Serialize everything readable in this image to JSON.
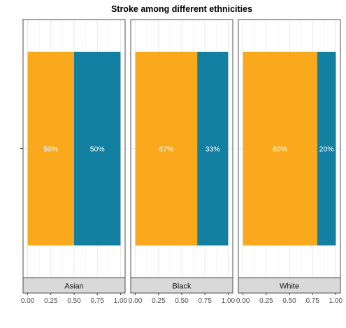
{
  "chart_data": {
    "type": "bar",
    "orientation": "horizontal",
    "stacked": true,
    "title": "Stroke among different ethnicities",
    "xlabel": "",
    "ylabel": "",
    "xlim": [
      0,
      1
    ],
    "x_ticks": [
      "0.00",
      "0.25",
      "0.50",
      "0.75",
      "1.00"
    ],
    "grid": true,
    "legend": "none",
    "facets": [
      "Asian",
      "Black",
      "White"
    ],
    "series": [
      {
        "color": "#F9A91B",
        "values": [
          0.5,
          0.6667,
          0.8
        ],
        "labels": [
          "50%",
          "67%",
          "80%"
        ]
      },
      {
        "color": "#1380A1",
        "values": [
          0.5,
          0.3333,
          0.2
        ],
        "labels": [
          "50%",
          "33%",
          "20%"
        ]
      }
    ]
  }
}
